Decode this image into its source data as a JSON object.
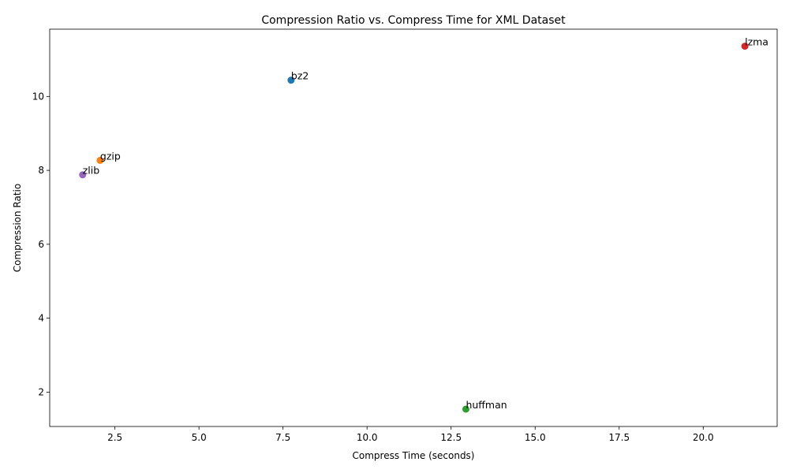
{
  "chart_data": {
    "type": "scatter",
    "title": "Compression Ratio vs. Compress Time for XML Dataset",
    "xlabel": "Compress Time (seconds)",
    "ylabel": "Compression Ratio",
    "xlim": [
      0.56,
      22.2
    ],
    "ylim": [
      1.07,
      11.82
    ],
    "xticks": [
      2.5,
      5.0,
      7.5,
      10.0,
      12.5,
      15.0,
      17.5,
      20.0
    ],
    "xtick_labels": [
      "2.5",
      "5.0",
      "7.5",
      "10.0",
      "12.5",
      "15.0",
      "17.5",
      "20.0"
    ],
    "yticks": [
      2,
      4,
      6,
      8,
      10
    ],
    "ytick_labels": [
      "2",
      "4",
      "6",
      "8",
      "10"
    ],
    "grid": false,
    "points": [
      {
        "label": "bz2",
        "x": 7.74,
        "y": 10.44,
        "color": "#1f77b4"
      },
      {
        "label": "gzip",
        "x": 2.06,
        "y": 8.27,
        "color": "#ff7f0e"
      },
      {
        "label": "huffman",
        "x": 12.94,
        "y": 1.54,
        "color": "#2ca02c"
      },
      {
        "label": "lzma",
        "x": 21.24,
        "y": 11.36,
        "color": "#d62728"
      },
      {
        "label": "zlib",
        "x": 1.54,
        "y": 7.88,
        "color": "#9467bd"
      }
    ]
  }
}
